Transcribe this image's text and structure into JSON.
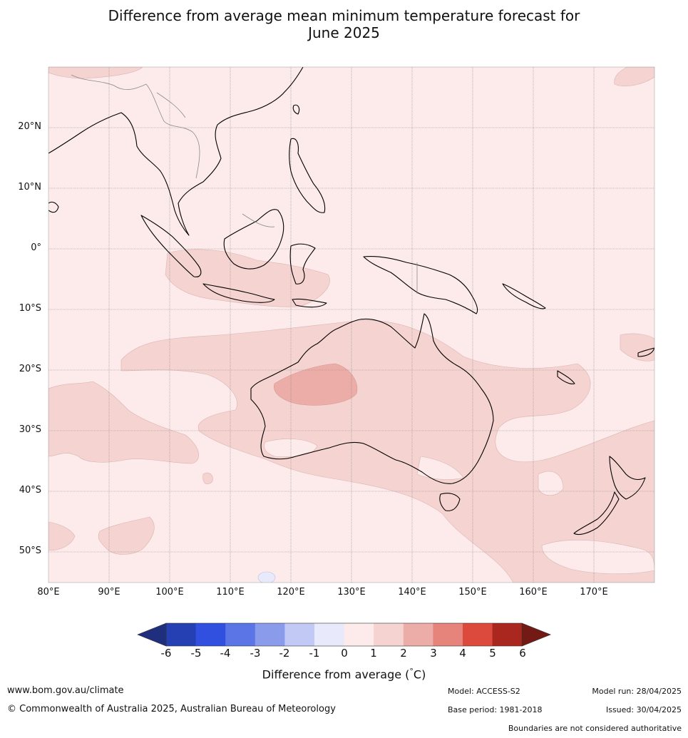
{
  "title_line1": "Difference from average mean minimum temperature forecast for",
  "title_line2": "June 2025",
  "lat_labels": [
    "20°N",
    "10°N",
    "0°",
    "10°S",
    "20°S",
    "30°S",
    "40°S",
    "50°S"
  ],
  "lon_labels": [
    "80°E",
    "90°E",
    "100°E",
    "110°E",
    "120°E",
    "130°E",
    "140°E",
    "150°E",
    "160°E",
    "170°E"
  ],
  "colorbar": {
    "ticks": [
      "-6",
      "-5",
      "-4",
      "-3",
      "-2",
      "-1",
      "0",
      "1",
      "2",
      "3",
      "4",
      "5",
      "6"
    ],
    "colors": [
      "#1f2f7d",
      "#2440b2",
      "#3150e0",
      "#5b75e6",
      "#8a9bec",
      "#c2c9f4",
      "#e8eafb",
      "#fcebea",
      "#f5d3d0",
      "#ecada8",
      "#e6837b",
      "#db4a3d",
      "#a9271e",
      "#731a15"
    ],
    "label": "Difference from average (°C)",
    "label_prefix": "Difference from average (",
    "label_deg": "°",
    "label_unit": "C)"
  },
  "map_colors": {
    "bg_0_1": "#fcebea",
    "band_1_2": "#f5d3d0",
    "band_2_3": "#ecada8",
    "band_neg": "#e8eafb"
  },
  "footer": {
    "website": "www.bom.gov.au/climate",
    "copyright": "© Commonwealth of Australia 2025, Australian Bureau of Meteorology",
    "model": "Model: ACCESS-S2",
    "model_run": "Model run: 28/04/2025",
    "base_period": "Base period: 1981-2018",
    "issued": "Issued: 30/04/2025",
    "disclaimer": "Boundaries are not considered authoritative"
  }
}
